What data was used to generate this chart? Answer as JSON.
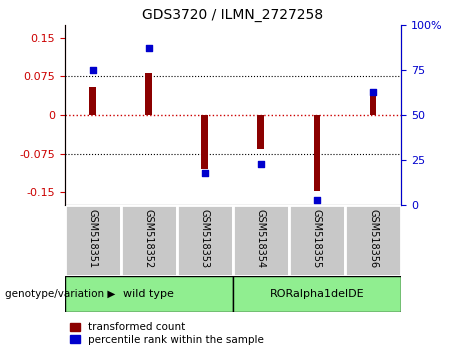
{
  "title": "GDS3720 / ILMN_2727258",
  "samples": [
    "GSM518351",
    "GSM518352",
    "GSM518353",
    "GSM518354",
    "GSM518355",
    "GSM518356"
  ],
  "red_bars": [
    0.055,
    0.082,
    -0.105,
    -0.065,
    -0.148,
    0.038
  ],
  "blue_dot_right_axis": [
    75,
    87,
    18,
    23,
    3,
    63
  ],
  "ylim_left": [
    -0.175,
    0.175
  ],
  "ylim_right": [
    0,
    100
  ],
  "yticks_left": [
    -0.15,
    -0.075,
    0,
    0.075,
    0.15
  ],
  "yticks_right": [
    0,
    25,
    50,
    75,
    100
  ],
  "groups": [
    {
      "label": "wild type",
      "samples": [
        0,
        1,
        2
      ],
      "color": "#90EE90"
    },
    {
      "label": "RORalpha1delDE",
      "samples": [
        3,
        4,
        5
      ],
      "color": "#90EE90"
    }
  ],
  "bar_color": "#8B0000",
  "dot_color": "#0000CD",
  "zero_line_color": "#CC0000",
  "hline_color": "#000000",
  "legend_red_label": "transformed count",
  "legend_blue_label": "percentile rank within the sample",
  "bar_width": 0.12,
  "dot_size": 18,
  "genotype_label": "genotype/variation",
  "cell_bg": "#c8c8c8",
  "cell_border": "#ffffff"
}
